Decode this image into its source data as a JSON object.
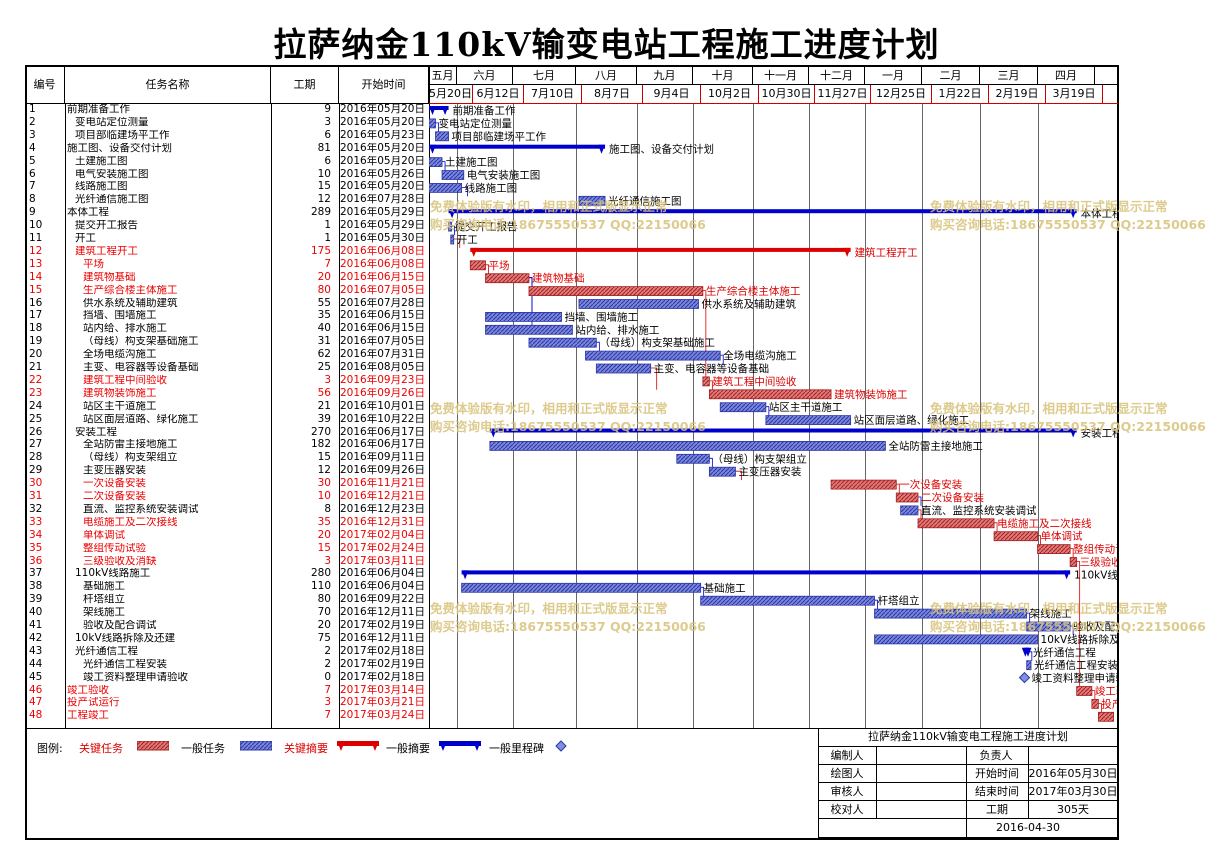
{
  "title": "拉萨纳金110kV输变电站工程施工进度计划",
  "columns": {
    "id": "编号",
    "name": "任务名称",
    "duration": "工期",
    "start": "开始时间"
  },
  "months": [
    "五月",
    "六月",
    "七月",
    "八月",
    "九月",
    "十月",
    "十一月",
    "十二月",
    "一月",
    "二月",
    "三月",
    "四月"
  ],
  "weeks": [
    "5月20日",
    "6月12日",
    "7月10日",
    "8月7日",
    "9月4日",
    "10月2日",
    "10月30日",
    "11月27日",
    "12月25日",
    "1月22日",
    "2月19日",
    "3月19日"
  ],
  "tasks": [
    {
      "id": "1",
      "name": "前期准备工作",
      "level": 0,
      "duration": "9",
      "start": "2016年05月20日",
      "type": "summary",
      "crit": false
    },
    {
      "id": "2",
      "name": "变电站定位测量",
      "level": 1,
      "duration": "3",
      "start": "2016年05月20日",
      "type": "task",
      "crit": false
    },
    {
      "id": "3",
      "name": "项目部临建场平工作",
      "level": 1,
      "duration": "6",
      "start": "2016年05月23日",
      "type": "task",
      "crit": false
    },
    {
      "id": "4",
      "name": "施工图、设备交付计划",
      "level": 0,
      "duration": "81",
      "start": "2016年05月20日",
      "type": "summary",
      "crit": false
    },
    {
      "id": "5",
      "name": "土建施工图",
      "level": 1,
      "duration": "6",
      "start": "2016年05月20日",
      "type": "task",
      "crit": false
    },
    {
      "id": "6",
      "name": "电气安装施工图",
      "level": 1,
      "duration": "10",
      "start": "2016年05月26日",
      "type": "task",
      "crit": false
    },
    {
      "id": "7",
      "name": "线路施工图",
      "level": 1,
      "duration": "15",
      "start": "2016年05月20日",
      "type": "task",
      "crit": false
    },
    {
      "id": "8",
      "name": "光纤通信施工图",
      "level": 1,
      "duration": "12",
      "start": "2016年07月28日",
      "type": "task",
      "crit": false
    },
    {
      "id": "9",
      "name": "本体工程",
      "level": 0,
      "duration": "289",
      "start": "2016年05月29日",
      "type": "summary",
      "crit": false
    },
    {
      "id": "10",
      "name": "提交开工报告",
      "level": 1,
      "duration": "1",
      "start": "2016年05月29日",
      "type": "task",
      "crit": false
    },
    {
      "id": "11",
      "name": "开工",
      "level": 1,
      "duration": "1",
      "start": "2016年05月30日",
      "type": "task",
      "crit": false
    },
    {
      "id": "12",
      "name": "建筑工程开工",
      "level": 1,
      "duration": "175",
      "start": "2016年06月08日",
      "type": "summary",
      "crit": true
    },
    {
      "id": "13",
      "name": "平场",
      "level": 2,
      "duration": "7",
      "start": "2016年06月08日",
      "type": "task",
      "crit": true
    },
    {
      "id": "14",
      "name": "建筑物基础",
      "level": 2,
      "duration": "20",
      "start": "2016年06月15日",
      "type": "task",
      "crit": true
    },
    {
      "id": "15",
      "name": "生产综合楼主体施工",
      "level": 2,
      "duration": "80",
      "start": "2016年07月05日",
      "type": "task",
      "crit": true
    },
    {
      "id": "16",
      "name": "供水系统及辅助建筑",
      "level": 2,
      "duration": "55",
      "start": "2016年07月28日",
      "type": "task",
      "crit": false
    },
    {
      "id": "17",
      "name": "挡墙、围墙施工",
      "level": 2,
      "duration": "35",
      "start": "2016年06月15日",
      "type": "task",
      "crit": false
    },
    {
      "id": "18",
      "name": "站内给、排水施工",
      "level": 2,
      "duration": "40",
      "start": "2016年06月15日",
      "type": "task",
      "crit": false
    },
    {
      "id": "19",
      "name": "（母线）构支架基础施工",
      "level": 2,
      "duration": "31",
      "start": "2016年07月05日",
      "type": "task",
      "crit": false
    },
    {
      "id": "20",
      "name": "全场电缆沟施工",
      "level": 2,
      "duration": "62",
      "start": "2016年07月31日",
      "type": "task",
      "crit": false
    },
    {
      "id": "21",
      "name": "主变、电容器等设备基础",
      "level": 2,
      "duration": "25",
      "start": "2016年08月05日",
      "type": "task",
      "crit": false
    },
    {
      "id": "22",
      "name": "建筑工程中间验收",
      "level": 2,
      "duration": "3",
      "start": "2016年09月23日",
      "type": "task",
      "crit": true
    },
    {
      "id": "23",
      "name": "建筑物装饰施工",
      "level": 2,
      "duration": "56",
      "start": "2016年09月26日",
      "type": "task",
      "crit": true
    },
    {
      "id": "24",
      "name": "站区主干道施工",
      "level": 2,
      "duration": "21",
      "start": "2016年10月01日",
      "type": "task",
      "crit": false
    },
    {
      "id": "25",
      "name": "站区面层道路、绿化施工",
      "level": 2,
      "duration": "39",
      "start": "2016年10月22日",
      "type": "task",
      "crit": false
    },
    {
      "id": "26",
      "name": "安装工程",
      "level": 1,
      "duration": "270",
      "start": "2016年06月17日",
      "type": "summary",
      "crit": false
    },
    {
      "id": "27",
      "name": "全站防雷主接地施工",
      "level": 2,
      "duration": "182",
      "start": "2016年06月17日",
      "type": "task",
      "crit": false
    },
    {
      "id": "28",
      "name": "（母线）构支架组立",
      "level": 2,
      "duration": "15",
      "start": "2016年09月11日",
      "type": "task",
      "crit": false
    },
    {
      "id": "29",
      "name": "主变压器安装",
      "level": 2,
      "duration": "12",
      "start": "2016年09月26日",
      "type": "task",
      "crit": false
    },
    {
      "id": "30",
      "name": "一次设备安装",
      "level": 2,
      "duration": "30",
      "start": "2016年11月21日",
      "type": "task",
      "crit": true
    },
    {
      "id": "31",
      "name": "二次设备安装",
      "level": 2,
      "duration": "10",
      "start": "2016年12月21日",
      "type": "task",
      "crit": true
    },
    {
      "id": "32",
      "name": "直流、监控系统安装调试",
      "level": 2,
      "duration": "8",
      "start": "2016年12月23日",
      "type": "task",
      "crit": false
    },
    {
      "id": "33",
      "name": "电缆施工及二次接线",
      "level": 2,
      "duration": "35",
      "start": "2016年12月31日",
      "type": "task",
      "crit": true
    },
    {
      "id": "34",
      "name": "单体调试",
      "level": 2,
      "duration": "20",
      "start": "2017年02月04日",
      "type": "task",
      "crit": true
    },
    {
      "id": "35",
      "name": "整组传动试验",
      "level": 2,
      "duration": "15",
      "start": "2017年02月24日",
      "type": "task",
      "crit": true
    },
    {
      "id": "36",
      "name": "三级验收及消缺",
      "level": 2,
      "duration": "3",
      "start": "2017年03月11日",
      "type": "task",
      "crit": true
    },
    {
      "id": "37",
      "name": "110kV线路施工",
      "level": 1,
      "duration": "280",
      "start": "2016年06月04日",
      "type": "summary",
      "crit": false
    },
    {
      "id": "38",
      "name": "基础施工",
      "level": 2,
      "duration": "110",
      "start": "2016年06月04日",
      "type": "task",
      "crit": false
    },
    {
      "id": "39",
      "name": "杆塔组立",
      "level": 2,
      "duration": "80",
      "start": "2016年09月22日",
      "type": "task",
      "crit": false
    },
    {
      "id": "40",
      "name": "架线施工",
      "level": 2,
      "duration": "70",
      "start": "2016年12月11日",
      "type": "task",
      "crit": false
    },
    {
      "id": "41",
      "name": "验收及配合调试",
      "level": 2,
      "duration": "20",
      "start": "2017年02月19日",
      "type": "task",
      "crit": false
    },
    {
      "id": "42",
      "name": "10kV线路拆除及还建",
      "level": 1,
      "duration": "75",
      "start": "2016年12月11日",
      "type": "task",
      "crit": false
    },
    {
      "id": "43",
      "name": "光纤通信工程",
      "level": 1,
      "duration": "2",
      "start": "2017年02月18日",
      "type": "summary",
      "crit": false
    },
    {
      "id": "44",
      "name": "光纤通信工程安装",
      "level": 2,
      "duration": "2",
      "start": "2017年02月19日",
      "type": "task",
      "crit": false
    },
    {
      "id": "45",
      "name": "竣工资料整理申请验收",
      "level": 2,
      "duration": "0",
      "start": "2017年02月18日",
      "type": "milestone",
      "crit": false
    },
    {
      "id": "46",
      "name": "竣工验收",
      "level": 0,
      "duration": "7",
      "start": "2017年03月14日",
      "type": "task",
      "crit": true
    },
    {
      "id": "47",
      "name": "投产试运行",
      "level": 0,
      "duration": "3",
      "start": "2017年03月21日",
      "type": "task",
      "crit": true
    },
    {
      "id": "48",
      "name": "工程竣工",
      "level": 0,
      "duration": "7",
      "start": "2017年03月24日",
      "type": "task",
      "crit": true
    }
  ],
  "watermark": {
    "line1": "免费体验版有水印，相用和正式版显示正常",
    "line2": "购买咨询电话:18675550537 QQ:22150066"
  },
  "legend": {
    "label": "图例:",
    "crit_task": "关键任务",
    "task": "一般任务",
    "crit_summary": "关键摘要",
    "summary": "一般摘要",
    "milestone": "一般里程碑"
  },
  "info": {
    "title": "拉萨纳金110kV输变电工程施工进度计划",
    "editor": "编制人",
    "owner": "负责人",
    "drawer": "绘图人",
    "start_label": "开始时间",
    "start_value": "2016年05月30日",
    "reviewer": "审核人",
    "end_label": "结束时间",
    "end_value": "2017年03月30日",
    "checker": "校对人",
    "duration_label": "工期",
    "duration_value": "305天",
    "date": "2016-04-30"
  },
  "colors": {
    "critical": "#dd0000",
    "normal": "#0000cc",
    "crit_fill": "#e06060",
    "task_fill": "#6070d0"
  }
}
